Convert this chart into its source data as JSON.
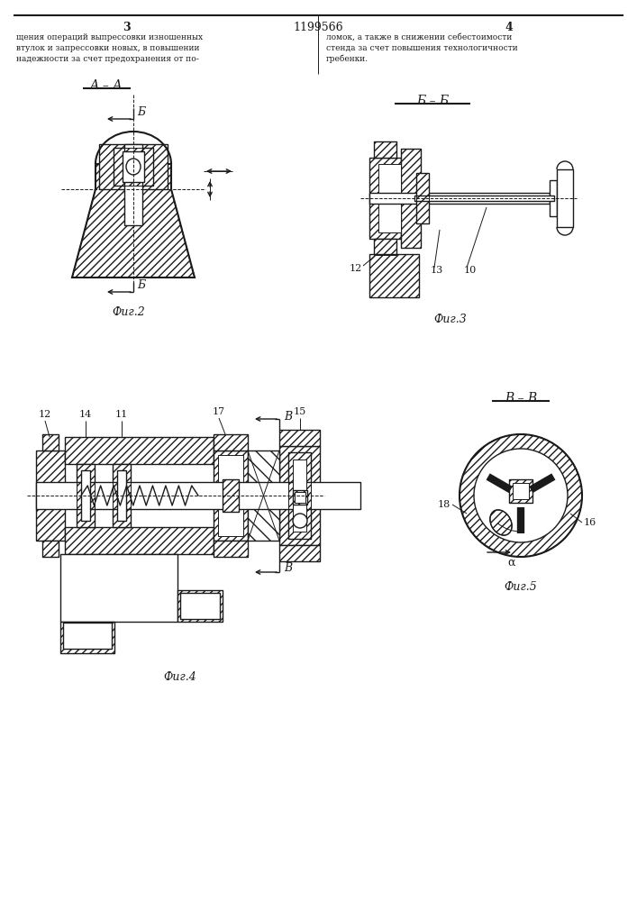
{
  "bg_color": "#ffffff",
  "lc": "#1a1a1a",
  "page_width": 7.07,
  "page_height": 10.0,
  "patent_number": "1199566",
  "page3": "3",
  "page4": "4",
  "col3_lines": [
    "щения операций выпрессовки изношенных",
    "втулок и запрессовки новых, в повышении",
    "надежности за счет предохранения от по-"
  ],
  "col4_lines": [
    "ломок, а также в снижении себестоимости",
    "стенда за счет повышения технологичности",
    "гребенки."
  ],
  "fig2_label": "Фиг.2",
  "fig3_label": "Фиг.3",
  "fig4_label": "Фиг.4",
  "fig5_label": "Фиг.5",
  "lbl_AA": "А – А",
  "lbl_BB": "Б – Б",
  "lbl_VV": "В – В",
  "lbl_B_cut": "Б",
  "lbl_V_cut": "В",
  "lbl_12a": "12",
  "lbl_13": "13",
  "lbl_10": "10",
  "lbl_12b": "12",
  "lbl_14": "14",
  "lbl_11": "11",
  "lbl_17": "17",
  "lbl_15": "15",
  "lbl_18": "18",
  "lbl_16": "16",
  "lbl_alpha": "α"
}
